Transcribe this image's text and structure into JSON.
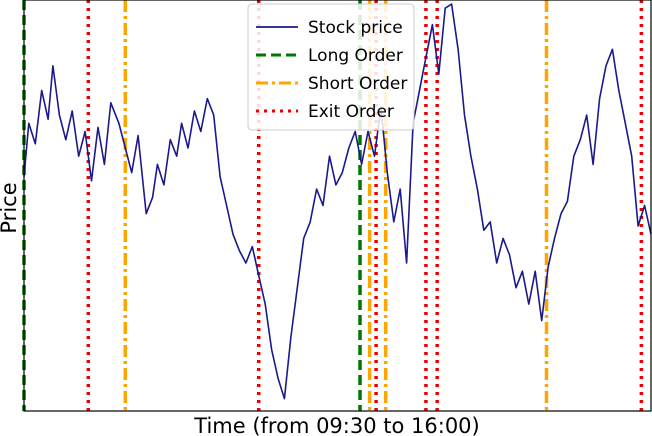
{
  "chart_data": {
    "type": "line",
    "title": "",
    "xlabel": "Time (from 09:30 to 16:00)",
    "ylabel": "Price",
    "x_range": [
      "09:30",
      "16:00"
    ],
    "ylim": [
      0,
      100
    ],
    "ticks_visible": false,
    "grid": false,
    "legend_position": "top-center",
    "price_series": {
      "name": "Stock price",
      "color": "#1a1a8c",
      "x": [
        "09:30",
        "09:33",
        "09:37",
        "09:41",
        "09:45",
        "09:48",
        "09:52",
        "09:56",
        "10:00",
        "10:04",
        "10:08",
        "10:12",
        "10:16",
        "10:20",
        "10:24",
        "10:29",
        "10:33",
        "10:37",
        "10:41",
        "10:46",
        "10:50",
        "10:53",
        "10:57",
        "11:01",
        "11:05",
        "11:08",
        "11:12",
        "11:16",
        "11:20",
        "11:24",
        "11:28",
        "11:32",
        "11:36",
        "11:40",
        "11:44",
        "11:48",
        "11:52",
        "11:56",
        "12:00",
        "12:04",
        "12:08",
        "12:12",
        "12:16",
        "12:20",
        "12:24",
        "12:28",
        "12:32",
        "12:36",
        "12:40",
        "12:44",
        "12:48",
        "12:52",
        "12:56",
        "13:00",
        "13:04",
        "13:08",
        "13:12",
        "13:16",
        "13:20",
        "13:24",
        "13:28",
        "13:32",
        "13:36",
        "13:40",
        "13:44",
        "13:48",
        "13:52",
        "13:56",
        "14:00",
        "14:04",
        "14:08",
        "14:12",
        "14:16",
        "14:20",
        "14:24",
        "14:28",
        "14:32",
        "14:36",
        "14:40",
        "14:44",
        "14:48",
        "14:52",
        "14:56",
        "15:00",
        "15:04",
        "15:08",
        "15:12",
        "15:16",
        "15:20",
        "15:24",
        "15:28",
        "15:32",
        "15:36",
        "15:40",
        "15:44",
        "15:48",
        "15:52",
        "15:56",
        "16:00"
      ],
      "y": [
        57,
        70,
        65,
        78,
        71,
        84,
        72,
        66,
        73,
        62,
        68,
        56,
        69,
        60,
        75,
        70,
        64,
        58,
        67,
        48,
        52,
        60,
        55,
        66,
        62,
        70,
        64,
        73,
        68,
        76,
        72,
        57,
        50,
        43,
        39,
        36,
        40,
        33,
        26,
        15,
        8,
        3,
        18,
        30,
        42,
        46,
        54,
        50,
        62,
        55,
        58,
        64,
        68,
        60,
        68,
        62,
        74,
        58,
        46,
        54,
        36,
        70,
        78,
        86,
        94,
        82,
        98,
        99,
        88,
        72,
        62,
        54,
        44,
        46,
        36,
        42,
        38,
        30,
        34,
        26,
        34,
        22,
        35,
        42,
        48,
        51,
        62,
        66,
        72,
        60,
        76,
        84,
        88,
        78,
        70,
        62,
        45,
        50,
        43
      ]
    },
    "order_lines": [
      {
        "name": "Long Order",
        "color": "#007700",
        "style": "dashed",
        "x": [
          "09:30",
          "12:59"
        ]
      },
      {
        "name": "Short Order",
        "color": "#ffa500",
        "style": "dashdot",
        "x": [
          "10:33",
          "13:05",
          "13:15",
          "14:55"
        ]
      },
      {
        "name": "Exit Order",
        "color": "#ee0000",
        "style": "dotted",
        "x": [
          "10:10",
          "11:56",
          "13:09",
          "13:40",
          "13:47",
          "15:54"
        ]
      }
    ]
  }
}
